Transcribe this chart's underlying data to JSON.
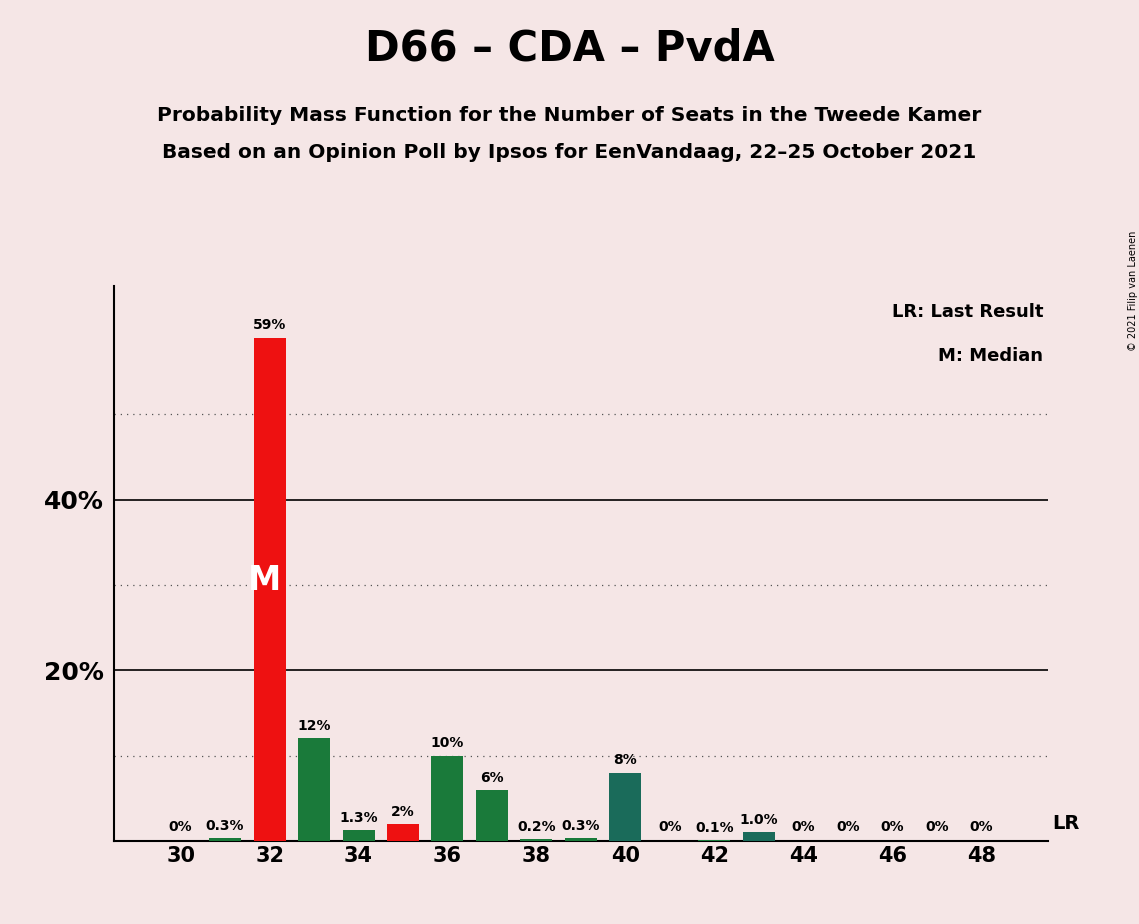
{
  "title": "D66 – CDA – PvdA",
  "subtitle1": "Probability Mass Function for the Number of Seats in the Tweede Kamer",
  "subtitle2": "Based on an Opinion Poll by Ipsos for EenVandaag, 22–25 October 2021",
  "copyright": "© 2021 Filip van Laenen",
  "legend_lr": "LR: Last Result",
  "legend_m": "M: Median",
  "lr_label": "LR",
  "median_label": "M",
  "background_color": "#f5e6e6",
  "bar_data": [
    {
      "seat": 30,
      "value": 0.0,
      "color": "#1a7a3a",
      "label": "0%"
    },
    {
      "seat": 31,
      "value": 0.3,
      "color": "#1a7a3a",
      "label": "0.3%"
    },
    {
      "seat": 32,
      "value": 59.0,
      "color": "#ee1111",
      "label": "59%",
      "is_median": true
    },
    {
      "seat": 33,
      "value": 12.0,
      "color": "#1a7a3a",
      "label": "12%"
    },
    {
      "seat": 34,
      "value": 1.3,
      "color": "#1a7a3a",
      "label": "1.3%"
    },
    {
      "seat": 35,
      "value": 2.0,
      "color": "#ee1111",
      "label": "2%",
      "is_lr": true
    },
    {
      "seat": 36,
      "value": 10.0,
      "color": "#1a7a3a",
      "label": "10%"
    },
    {
      "seat": 37,
      "value": 6.0,
      "color": "#1a7a3a",
      "label": "6%"
    },
    {
      "seat": 38,
      "value": 0.2,
      "color": "#1a7a3a",
      "label": "0.2%"
    },
    {
      "seat": 39,
      "value": 0.3,
      "color": "#1a7a3a",
      "label": "0.3%"
    },
    {
      "seat": 40,
      "value": 8.0,
      "color": "#1a6b5a",
      "label": "8%"
    },
    {
      "seat": 41,
      "value": 0.0,
      "color": "#1a7a3a",
      "label": "0%"
    },
    {
      "seat": 42,
      "value": 0.1,
      "color": "#1a7a3a",
      "label": "0.1%"
    },
    {
      "seat": 43,
      "value": 1.0,
      "color": "#1a6b5a",
      "label": "1.0%"
    },
    {
      "seat": 44,
      "value": 0.0,
      "color": "#1a7a3a",
      "label": "0%"
    },
    {
      "seat": 45,
      "value": 0.0,
      "color": "#1a7a3a",
      "label": "0%"
    },
    {
      "seat": 46,
      "value": 0.0,
      "color": "#1a7a3a",
      "label": "0%"
    },
    {
      "seat": 47,
      "value": 0.0,
      "color": "#1a7a3a",
      "label": "0%"
    },
    {
      "seat": 48,
      "value": 0.0,
      "color": "#1a7a3a",
      "label": "0%"
    }
  ],
  "ylim": [
    0,
    65
  ],
  "ytick_labeled": [
    20,
    40
  ],
  "ytick_labeled_labels": [
    "20%",
    "40%"
  ],
  "dotted_gridlines": [
    10,
    30,
    50
  ],
  "solid_gridlines": [
    20,
    40
  ],
  "xlim": [
    28.5,
    49.5
  ],
  "xticks": [
    30,
    32,
    34,
    36,
    38,
    40,
    42,
    44,
    46,
    48
  ],
  "median_seat": 32,
  "bar_width": 0.72,
  "title_fontsize": 30,
  "subtitle_fontsize": 14.5,
  "tick_fontsize": 15,
  "label_fontsize": 10,
  "ytick_fontsize": 18
}
